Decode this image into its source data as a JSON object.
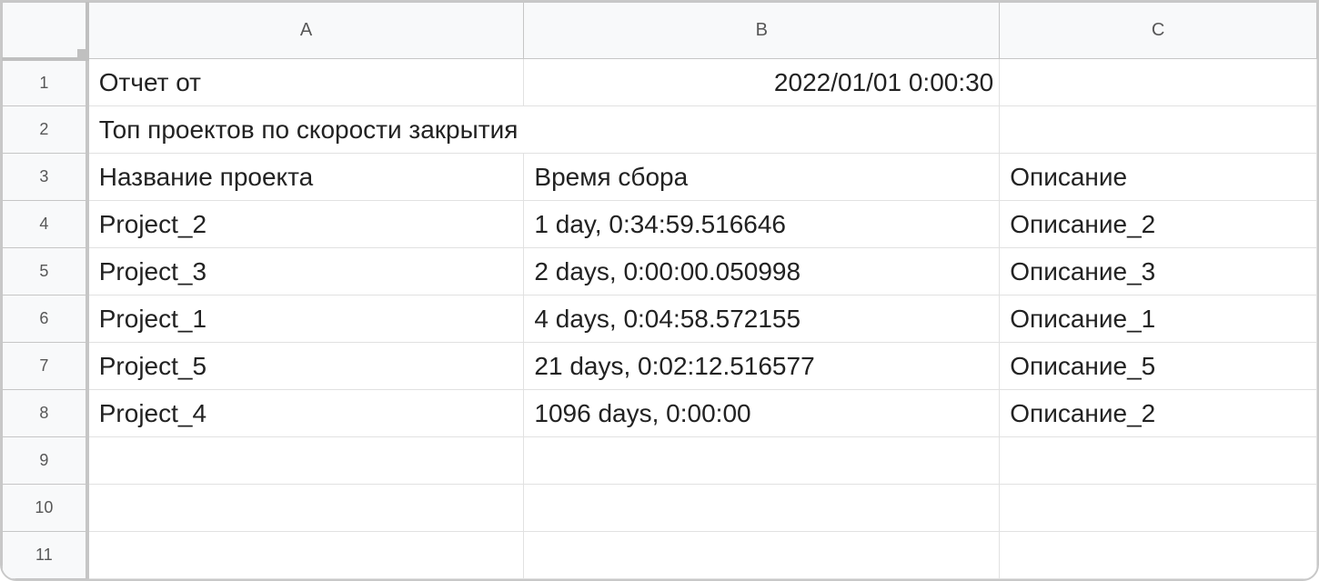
{
  "columns": [
    "A",
    "B",
    "C"
  ],
  "rows": [
    {
      "num": "1",
      "a": "Отчет от",
      "b": "2022/01/01 0:00:30",
      "c": ""
    },
    {
      "num": "2",
      "a": "Топ проектов по скорости закрытия",
      "b": "",
      "c": ""
    },
    {
      "num": "3",
      "a": "Название проекта",
      "b": "Время сбора",
      "c": "Описание"
    },
    {
      "num": "4",
      "a": "Project_2",
      "b": "1 day, 0:34:59.516646",
      "c": "Описание_2"
    },
    {
      "num": "5",
      "a": "Project_3",
      "b": "2 days, 0:00:00.050998",
      "c": "Описание_3"
    },
    {
      "num": "6",
      "a": "Project_1",
      "b": "4 days, 0:04:58.572155",
      "c": "Описание_1"
    },
    {
      "num": "7",
      "a": "Project_5",
      "b": "21 days, 0:02:12.516577",
      "c": "Описание_5"
    },
    {
      "num": "8",
      "a": "Project_4",
      "b": "1096 days, 0:00:00",
      "c": "Описание_2"
    },
    {
      "num": "9",
      "a": "",
      "b": "",
      "c": ""
    },
    {
      "num": "10",
      "a": "",
      "b": "",
      "c": ""
    },
    {
      "num": "11",
      "a": "",
      "b": "",
      "c": ""
    }
  ]
}
